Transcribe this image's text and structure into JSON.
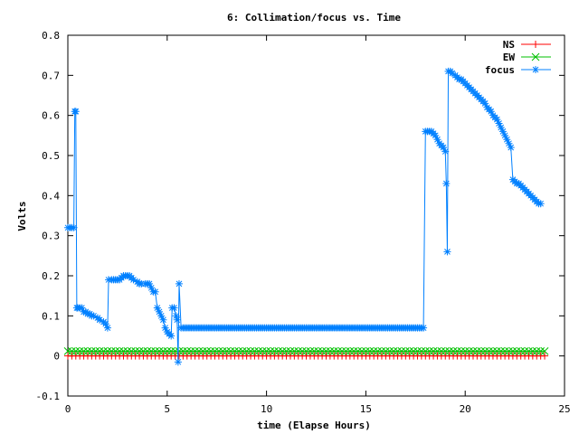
{
  "chart_data": {
    "type": "line",
    "title": "6: Collimation/focus vs. Time",
    "xlabel": "time (Elapse Hours)",
    "ylabel": "Volts",
    "xlim": [
      0,
      25
    ],
    "ylim": [
      -0.1,
      0.8
    ],
    "xticks": [
      "0",
      "5",
      "10",
      "15",
      "20",
      "25"
    ],
    "yticks": [
      "-0.1",
      "0",
      "0.1",
      "0.2",
      "0.3",
      "0.4",
      "0.5",
      "0.6",
      "0.7",
      "0.8"
    ],
    "legend_position": "top-right",
    "series": [
      {
        "name": "NS",
        "color": "#ff0000",
        "marker": "plus",
        "x": [
          0,
          24
        ],
        "y": [
          0.0,
          0.0
        ]
      },
      {
        "name": "EW",
        "color": "#00c000",
        "marker": "cross",
        "x": [
          0,
          24
        ],
        "y": [
          0.012,
          0.012
        ]
      },
      {
        "name": "focus",
        "color": "#0080ff",
        "marker": "star",
        "points": [
          [
            0.0,
            0.32
          ],
          [
            0.1,
            0.32
          ],
          [
            0.2,
            0.32
          ],
          [
            0.3,
            0.32
          ],
          [
            0.35,
            0.61
          ],
          [
            0.4,
            0.61
          ],
          [
            0.45,
            0.12
          ],
          [
            0.5,
            0.12
          ],
          [
            0.6,
            0.12
          ],
          [
            0.7,
            0.12
          ],
          [
            0.8,
            0.11
          ],
          [
            0.9,
            0.11
          ],
          [
            1.0,
            0.105
          ],
          [
            1.1,
            0.105
          ],
          [
            1.2,
            0.1
          ],
          [
            1.3,
            0.1
          ],
          [
            1.5,
            0.095
          ],
          [
            1.6,
            0.09
          ],
          [
            1.8,
            0.085
          ],
          [
            1.9,
            0.08
          ],
          [
            2.0,
            0.07
          ],
          [
            2.05,
            0.19
          ],
          [
            2.2,
            0.19
          ],
          [
            2.3,
            0.19
          ],
          [
            2.4,
            0.19
          ],
          [
            2.5,
            0.19
          ],
          [
            2.6,
            0.19
          ],
          [
            2.7,
            0.195
          ],
          [
            2.8,
            0.2
          ],
          [
            2.9,
            0.2
          ],
          [
            3.0,
            0.2
          ],
          [
            3.1,
            0.2
          ],
          [
            3.2,
            0.195
          ],
          [
            3.3,
            0.19
          ],
          [
            3.5,
            0.185
          ],
          [
            3.6,
            0.18
          ],
          [
            3.7,
            0.18
          ],
          [
            3.9,
            0.18
          ],
          [
            4.0,
            0.18
          ],
          [
            4.1,
            0.18
          ],
          [
            4.2,
            0.17
          ],
          [
            4.3,
            0.16
          ],
          [
            4.4,
            0.16
          ],
          [
            4.5,
            0.12
          ],
          [
            4.6,
            0.11
          ],
          [
            4.7,
            0.1
          ],
          [
            4.8,
            0.09
          ],
          [
            4.9,
            0.07
          ],
          [
            5.0,
            0.06
          ],
          [
            5.1,
            0.055
          ],
          [
            5.2,
            0.05
          ],
          [
            5.25,
            0.12
          ],
          [
            5.35,
            0.12
          ],
          [
            5.45,
            0.1
          ],
          [
            5.5,
            0.09
          ],
          [
            5.55,
            -0.015
          ],
          [
            5.6,
            0.18
          ],
          [
            5.7,
            0.07
          ],
          [
            5.8,
            0.07
          ],
          [
            5.9,
            0.07
          ],
          [
            6.0,
            0.07
          ],
          [
            6.1,
            0.07
          ],
          [
            6.2,
            0.07
          ],
          [
            6.3,
            0.07
          ],
          [
            6.4,
            0.07
          ],
          [
            6.5,
            0.07
          ],
          [
            6.6,
            0.07
          ],
          [
            6.7,
            0.07
          ],
          [
            6.8,
            0.07
          ],
          [
            6.9,
            0.07
          ],
          [
            7.0,
            0.07
          ],
          [
            7.1,
            0.07
          ],
          [
            7.2,
            0.07
          ],
          [
            7.3,
            0.07
          ],
          [
            7.4,
            0.07
          ],
          [
            7.5,
            0.07
          ],
          [
            7.6,
            0.07
          ],
          [
            7.7,
            0.07
          ],
          [
            7.8,
            0.07
          ],
          [
            7.9,
            0.07
          ],
          [
            8.0,
            0.07
          ],
          [
            8.1,
            0.07
          ],
          [
            8.2,
            0.07
          ],
          [
            8.3,
            0.07
          ],
          [
            8.4,
            0.07
          ],
          [
            8.5,
            0.07
          ],
          [
            8.6,
            0.07
          ],
          [
            8.7,
            0.07
          ],
          [
            8.8,
            0.07
          ],
          [
            8.9,
            0.07
          ],
          [
            9.0,
            0.07
          ],
          [
            9.1,
            0.07
          ],
          [
            9.2,
            0.07
          ],
          [
            9.3,
            0.07
          ],
          [
            9.4,
            0.07
          ],
          [
            9.5,
            0.07
          ],
          [
            9.6,
            0.07
          ],
          [
            9.7,
            0.07
          ],
          [
            9.8,
            0.07
          ],
          [
            9.9,
            0.07
          ],
          [
            10.0,
            0.07
          ],
          [
            10.1,
            0.07
          ],
          [
            10.2,
            0.07
          ],
          [
            10.3,
            0.07
          ],
          [
            10.4,
            0.07
          ],
          [
            10.5,
            0.07
          ],
          [
            10.6,
            0.07
          ],
          [
            10.7,
            0.07
          ],
          [
            10.8,
            0.07
          ],
          [
            10.9,
            0.07
          ],
          [
            11.0,
            0.07
          ],
          [
            11.1,
            0.07
          ],
          [
            11.2,
            0.07
          ],
          [
            11.3,
            0.07
          ],
          [
            11.4,
            0.07
          ],
          [
            11.5,
            0.07
          ],
          [
            11.6,
            0.07
          ],
          [
            11.7,
            0.07
          ],
          [
            11.8,
            0.07
          ],
          [
            11.9,
            0.07
          ],
          [
            12.0,
            0.07
          ],
          [
            12.1,
            0.07
          ],
          [
            12.2,
            0.07
          ],
          [
            12.3,
            0.07
          ],
          [
            12.4,
            0.07
          ],
          [
            12.5,
            0.07
          ],
          [
            12.6,
            0.07
          ],
          [
            12.7,
            0.07
          ],
          [
            12.8,
            0.07
          ],
          [
            12.9,
            0.07
          ],
          [
            13.0,
            0.07
          ],
          [
            13.1,
            0.07
          ],
          [
            13.2,
            0.07
          ],
          [
            13.3,
            0.07
          ],
          [
            13.4,
            0.07
          ],
          [
            13.5,
            0.07
          ],
          [
            13.6,
            0.07
          ],
          [
            13.7,
            0.07
          ],
          [
            13.8,
            0.07
          ],
          [
            13.9,
            0.07
          ],
          [
            14.0,
            0.07
          ],
          [
            14.1,
            0.07
          ],
          [
            14.2,
            0.07
          ],
          [
            14.3,
            0.07
          ],
          [
            14.4,
            0.07
          ],
          [
            14.5,
            0.07
          ],
          [
            14.6,
            0.07
          ],
          [
            14.7,
            0.07
          ],
          [
            14.8,
            0.07
          ],
          [
            14.9,
            0.07
          ],
          [
            15.0,
            0.07
          ],
          [
            15.1,
            0.07
          ],
          [
            15.2,
            0.07
          ],
          [
            15.3,
            0.07
          ],
          [
            15.4,
            0.07
          ],
          [
            15.5,
            0.07
          ],
          [
            15.6,
            0.07
          ],
          [
            15.7,
            0.07
          ],
          [
            15.8,
            0.07
          ],
          [
            15.9,
            0.07
          ],
          [
            16.0,
            0.07
          ],
          [
            16.1,
            0.07
          ],
          [
            16.2,
            0.07
          ],
          [
            16.3,
            0.07
          ],
          [
            16.4,
            0.07
          ],
          [
            16.5,
            0.07
          ],
          [
            16.6,
            0.07
          ],
          [
            16.7,
            0.07
          ],
          [
            16.8,
            0.07
          ],
          [
            16.9,
            0.07
          ],
          [
            17.0,
            0.07
          ],
          [
            17.1,
            0.07
          ],
          [
            17.2,
            0.07
          ],
          [
            17.3,
            0.07
          ],
          [
            17.4,
            0.07
          ],
          [
            17.5,
            0.07
          ],
          [
            17.6,
            0.07
          ],
          [
            17.7,
            0.07
          ],
          [
            17.8,
            0.07
          ],
          [
            17.9,
            0.07
          ],
          [
            18.0,
            0.56
          ],
          [
            18.1,
            0.56
          ],
          [
            18.2,
            0.56
          ],
          [
            18.3,
            0.56
          ],
          [
            18.4,
            0.555
          ],
          [
            18.5,
            0.55
          ],
          [
            18.6,
            0.54
          ],
          [
            18.7,
            0.53
          ],
          [
            18.8,
            0.525
          ],
          [
            18.9,
            0.52
          ],
          [
            19.0,
            0.51
          ],
          [
            19.05,
            0.43
          ],
          [
            19.1,
            0.26
          ],
          [
            19.15,
            0.71
          ],
          [
            19.25,
            0.71
          ],
          [
            19.35,
            0.705
          ],
          [
            19.5,
            0.7
          ],
          [
            19.6,
            0.695
          ],
          [
            19.7,
            0.69
          ],
          [
            19.8,
            0.69
          ],
          [
            19.9,
            0.685
          ],
          [
            20.0,
            0.68
          ],
          [
            20.1,
            0.675
          ],
          [
            20.2,
            0.67
          ],
          [
            20.3,
            0.665
          ],
          [
            20.4,
            0.66
          ],
          [
            20.5,
            0.655
          ],
          [
            20.6,
            0.65
          ],
          [
            20.7,
            0.645
          ],
          [
            20.8,
            0.64
          ],
          [
            20.9,
            0.635
          ],
          [
            21.0,
            0.63
          ],
          [
            21.1,
            0.62
          ],
          [
            21.2,
            0.615
          ],
          [
            21.3,
            0.61
          ],
          [
            21.4,
            0.6
          ],
          [
            21.5,
            0.595
          ],
          [
            21.6,
            0.59
          ],
          [
            21.7,
            0.58
          ],
          [
            21.8,
            0.57
          ],
          [
            21.9,
            0.56
          ],
          [
            22.0,
            0.55
          ],
          [
            22.1,
            0.54
          ],
          [
            22.2,
            0.53
          ],
          [
            22.3,
            0.52
          ],
          [
            22.4,
            0.44
          ],
          [
            22.5,
            0.435
          ],
          [
            22.6,
            0.43
          ],
          [
            22.7,
            0.43
          ],
          [
            22.8,
            0.425
          ],
          [
            22.9,
            0.42
          ],
          [
            23.0,
            0.415
          ],
          [
            23.1,
            0.41
          ],
          [
            23.2,
            0.405
          ],
          [
            23.3,
            0.4
          ],
          [
            23.4,
            0.395
          ],
          [
            23.5,
            0.39
          ],
          [
            23.6,
            0.385
          ],
          [
            23.7,
            0.38
          ],
          [
            23.8,
            0.38
          ]
        ]
      }
    ]
  }
}
